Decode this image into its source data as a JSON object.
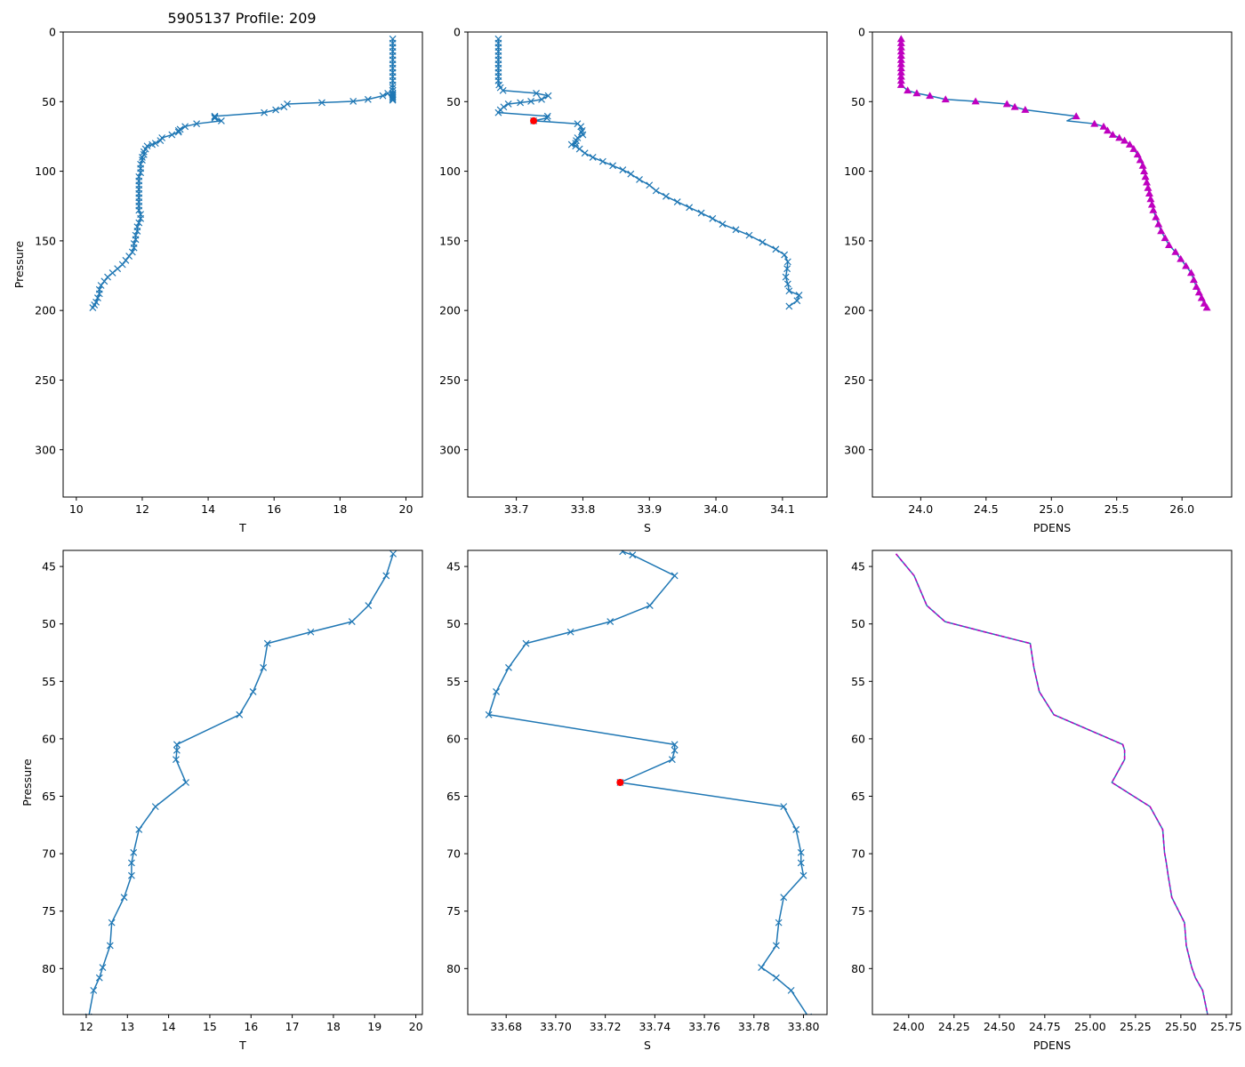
{
  "figure_title": "5905137 Profile: 209",
  "chart_data": [
    {
      "type": "line",
      "panel": "top-left",
      "title": "5905137 Profile: 209",
      "xlabel": "T",
      "ylabel": "Pressure",
      "xlim": [
        9.6,
        20.5
      ],
      "ylim": [
        334,
        0
      ],
      "xticks": [
        10,
        12,
        14,
        16,
        18,
        20
      ],
      "yticks": [
        0,
        50,
        100,
        150,
        200,
        250,
        300
      ],
      "series": [
        {
          "name": "T",
          "color": "#1f77b4",
          "marker": "x",
          "x": [
            19.6,
            19.6,
            19.6,
            19.6,
            19.6,
            19.6,
            19.6,
            19.6,
            19.6,
            19.6,
            19.6,
            19.6,
            19.6,
            19.6,
            19.6,
            19.6,
            19.6,
            19.6,
            19.6,
            19.6,
            19.45,
            19.3,
            18.85,
            18.4,
            17.45,
            16.4,
            16.3,
            16.05,
            15.7,
            14.2,
            14.2,
            14.2,
            14.4,
            13.65,
            13.3,
            13.15,
            13.1,
            13.1,
            12.9,
            12.6,
            12.55,
            12.4,
            12.3,
            12.15,
            12.1,
            12.05,
            12.05,
            12.0,
            12.0,
            11.95,
            11.95,
            11.95,
            11.9,
            11.9,
            11.9,
            11.9,
            11.9,
            11.9,
            11.9,
            11.9,
            11.9,
            11.95,
            11.95,
            11.9,
            11.85,
            11.85,
            11.8,
            11.8,
            11.75,
            11.75,
            11.7,
            11.6,
            11.5,
            11.4,
            11.25,
            11.1,
            10.95,
            10.85,
            10.75,
            10.7,
            10.7,
            10.65,
            10.6,
            10.55,
            10.5
          ],
          "y": [
            5,
            8,
            11,
            14,
            17,
            20,
            23,
            26,
            29,
            32,
            35,
            38,
            40,
            42,
            44,
            45,
            46,
            47,
            48,
            49,
            44,
            45.8,
            48.4,
            49.8,
            50.7,
            51.7,
            53.8,
            55.9,
            57.9,
            60.5,
            61.0,
            61.8,
            63.8,
            65.9,
            67.9,
            69.9,
            70.8,
            71.9,
            73.8,
            76.0,
            78.0,
            79.9,
            80.8,
            81.9,
            84,
            86,
            88,
            90,
            92,
            95,
            98,
            101,
            104,
            107,
            110,
            113,
            116,
            119,
            122,
            125,
            128,
            131,
            134,
            137,
            140,
            143,
            146,
            149,
            152,
            155,
            158,
            161,
            164,
            167,
            170,
            173,
            176,
            179,
            182,
            185,
            188,
            191,
            194,
            196,
            198
          ]
        }
      ]
    },
    {
      "type": "line",
      "panel": "top-middle",
      "xlabel": "S",
      "xlim": [
        33.627,
        34.167
      ],
      "ylim": [
        334,
        0
      ],
      "xticks": [
        33.7,
        33.8,
        33.9,
        34.0,
        34.1
      ],
      "yticks": [
        0,
        50,
        100,
        150,
        200,
        250,
        300
      ],
      "series": [
        {
          "name": "S",
          "color": "#1f77b4",
          "marker": "x",
          "x": [
            33.673,
            33.673,
            33.673,
            33.673,
            33.673,
            33.673,
            33.673,
            33.673,
            33.673,
            33.673,
            33.673,
            33.674,
            33.676,
            33.68,
            33.73,
            33.748,
            33.738,
            33.722,
            33.706,
            33.688,
            33.681,
            33.676,
            33.673,
            33.747,
            33.746,
            33.726,
            33.792,
            33.797,
            33.799,
            33.798,
            33.8,
            33.792,
            33.79,
            33.789,
            33.783,
            33.789,
            33.795,
            33.803,
            33.815,
            33.83,
            33.845,
            33.86,
            33.872,
            33.885,
            33.9,
            33.91,
            33.925,
            33.942,
            33.96,
            33.978,
            33.995,
            34.01,
            34.03,
            34.05,
            34.07,
            34.09,
            34.103,
            34.108,
            34.107,
            34.105,
            34.108,
            34.11,
            34.125,
            34.122,
            34.11
          ],
          "y": [
            5,
            8,
            11,
            14,
            17,
            20,
            23,
            26,
            29,
            32,
            35,
            38,
            40,
            42,
            44,
            45.8,
            48.4,
            49.8,
            50.7,
            51.7,
            53.8,
            55.9,
            57.9,
            60.5,
            61.8,
            63.8,
            65.9,
            67.9,
            70.8,
            71.9,
            73.8,
            76.0,
            78.0,
            79.9,
            80.8,
            81.9,
            84,
            87,
            90,
            93,
            96,
            99,
            102,
            106,
            110,
            114,
            118,
            122,
            126,
            130,
            134,
            138,
            142,
            146,
            151,
            156,
            160,
            165,
            170,
            176,
            181,
            186,
            189,
            193,
            197
          ]
        },
        {
          "name": "marker",
          "color": "#ff0000",
          "marker": "o",
          "x": [
            33.726
          ],
          "y": [
            63.8
          ]
        }
      ]
    },
    {
      "type": "line",
      "panel": "top-right",
      "xlabel": "PDENS",
      "xlim": [
        23.63,
        26.38
      ],
      "ylim": [
        334,
        0
      ],
      "xticks": [
        24.0,
        24.5,
        25.0,
        25.5,
        26.0
      ],
      "yticks": [
        0,
        50,
        100,
        150,
        200,
        250,
        300
      ],
      "series": [
        {
          "name": "PDENS",
          "color": "#1f77b4",
          "marker": "",
          "x": [
            23.85,
            23.85,
            23.85,
            23.85,
            23.85,
            23.85,
            23.85,
            23.85,
            23.85,
            23.85,
            23.85,
            23.85,
            23.9,
            23.97,
            24.07,
            24.19,
            24.42,
            24.66,
            24.72,
            24.8,
            25.19,
            25.12,
            25.33,
            25.4,
            25.43,
            25.47,
            25.52,
            25.56,
            25.6,
            25.63,
            25.66,
            25.68,
            25.7,
            25.71,
            25.72,
            25.73,
            25.74,
            25.75,
            25.76,
            25.77,
            25.78,
            25.8,
            25.82,
            25.84,
            25.87,
            25.9,
            25.95,
            25.99,
            26.03,
            26.07,
            26.09,
            26.11,
            26.13,
            26.15,
            26.17,
            26.19
          ],
          "y": [
            5,
            8,
            11,
            14,
            17,
            20,
            23,
            26,
            29,
            32,
            35,
            38,
            42,
            44,
            45.8,
            48.4,
            49.8,
            51.7,
            53.8,
            55.9,
            60.5,
            63.8,
            65.9,
            67.9,
            70.8,
            73.8,
            76,
            78,
            80.8,
            84,
            88,
            92,
            96,
            100,
            104,
            108,
            112,
            116,
            120,
            124,
            128,
            133,
            138,
            143,
            148,
            153,
            158,
            163,
            168,
            173,
            178,
            183,
            187,
            191,
            195,
            198
          ]
        },
        {
          "name": "PDENS markers",
          "color": "#bf00bf",
          "marker": "^",
          "x": [
            23.85,
            23.85,
            23.85,
            23.85,
            23.85,
            23.85,
            23.85,
            23.85,
            23.85,
            23.85,
            23.85,
            23.85,
            23.9,
            23.97,
            24.07,
            24.19,
            24.42,
            24.66,
            24.72,
            24.8,
            25.19,
            25.33,
            25.4,
            25.43,
            25.47,
            25.52,
            25.56,
            25.6,
            25.63,
            25.66,
            25.68,
            25.7,
            25.71,
            25.72,
            25.73,
            25.74,
            25.75,
            25.76,
            25.77,
            25.78,
            25.8,
            25.82,
            25.84,
            25.87,
            25.9,
            25.95,
            25.99,
            26.03,
            26.07,
            26.09,
            26.11,
            26.13,
            26.15,
            26.17,
            26.19
          ],
          "y": [
            5,
            8,
            11,
            14,
            17,
            20,
            23,
            26,
            29,
            32,
            35,
            38,
            42,
            44,
            45.8,
            48.4,
            49.8,
            51.7,
            53.8,
            55.9,
            60.5,
            65.9,
            67.9,
            70.8,
            73.8,
            76,
            78,
            80.8,
            84,
            88,
            92,
            96,
            100,
            104,
            108,
            112,
            116,
            120,
            124,
            128,
            133,
            138,
            143,
            148,
            153,
            158,
            163,
            168,
            173,
            178,
            183,
            187,
            191,
            195,
            198
          ]
        }
      ]
    },
    {
      "type": "line",
      "panel": "bottom-left",
      "xlabel": "T",
      "ylabel": "Pressure",
      "xlim": [
        11.44,
        20.16
      ],
      "ylim": [
        84,
        43.6
      ],
      "xticks": [
        12,
        13,
        14,
        15,
        16,
        17,
        18,
        19,
        20
      ],
      "yticks": [
        45,
        50,
        55,
        60,
        65,
        70,
        75,
        80
      ],
      "series": [
        {
          "name": "T",
          "color": "#1f77b4",
          "marker": "x",
          "x": [
            19.45,
            19.28,
            18.85,
            18.45,
            17.45,
            16.4,
            16.3,
            16.05,
            15.72,
            14.2,
            14.2,
            14.18,
            14.42,
            13.68,
            13.28,
            13.15,
            13.1,
            13.1,
            12.92,
            12.62,
            12.58,
            12.4,
            12.32,
            12.18,
            12.06
          ],
          "y": [
            43.9,
            45.8,
            48.4,
            49.8,
            50.7,
            51.7,
            53.8,
            55.9,
            57.9,
            60.5,
            61.0,
            61.8,
            63.8,
            65.9,
            67.9,
            69.9,
            70.8,
            71.9,
            73.8,
            76.0,
            78.0,
            79.9,
            80.8,
            81.9,
            84.2
          ]
        }
      ]
    },
    {
      "type": "line",
      "panel": "bottom-middle",
      "xlabel": "S",
      "xlim": [
        33.6645,
        33.8095
      ],
      "ylim": [
        84,
        43.6
      ],
      "xticks": [
        33.68,
        33.7,
        33.72,
        33.74,
        33.76,
        33.78,
        33.8
      ],
      "tick_labels": [
        "33.68",
        "33.70",
        "33.72",
        "33.74",
        "33.76",
        "33.78",
        "33.80"
      ],
      "yticks": [
        45,
        50,
        55,
        60,
        65,
        70,
        75,
        80
      ],
      "series": [
        {
          "name": "S",
          "color": "#1f77b4",
          "marker": "x",
          "x": [
            33.727,
            33.731,
            33.748,
            33.738,
            33.722,
            33.706,
            33.688,
            33.681,
            33.676,
            33.673,
            33.748,
            33.748,
            33.747,
            33.726,
            33.792,
            33.797,
            33.799,
            33.799,
            33.8,
            33.792,
            33.79,
            33.789,
            33.783,
            33.789,
            33.795,
            33.802
          ],
          "y": [
            43.7,
            44.0,
            45.8,
            48.4,
            49.8,
            50.7,
            51.7,
            53.8,
            55.9,
            57.9,
            60.5,
            61.0,
            61.8,
            63.8,
            65.9,
            67.9,
            69.9,
            70.8,
            71.9,
            73.8,
            76.0,
            78.0,
            79.9,
            80.8,
            81.9,
            84.2
          ]
        },
        {
          "name": "marker",
          "color": "#ff0000",
          "marker": "o",
          "x": [
            33.726
          ],
          "y": [
            63.8
          ]
        }
      ]
    },
    {
      "type": "line",
      "panel": "bottom-right",
      "xlabel": "PDENS",
      "xlim": [
        23.8,
        25.78
      ],
      "ylim": [
        84,
        43.6
      ],
      "xticks": [
        24.0,
        24.25,
        24.5,
        24.75,
        25.0,
        25.25,
        25.5,
        25.75
      ],
      "tick_labels": [
        "24.00",
        "24.25",
        "24.50",
        "24.75",
        "25.00",
        "25.25",
        "25.50",
        "25.75"
      ],
      "yticks": [
        45,
        50,
        55,
        60,
        65,
        70,
        75,
        80
      ],
      "series": [
        {
          "name": "PDENS",
          "color": "#1f77b4",
          "marker": "",
          "x": [
            23.93,
            24.03,
            24.1,
            24.2,
            24.42,
            24.67,
            24.69,
            24.72,
            24.8,
            25.18,
            25.19,
            25.19,
            25.12,
            25.33,
            25.4,
            25.41,
            25.42,
            25.43,
            25.45,
            25.52,
            25.53,
            25.56,
            25.58,
            25.62,
            25.65
          ],
          "y": [
            43.9,
            45.8,
            48.4,
            49.8,
            50.7,
            51.7,
            53.8,
            55.9,
            57.9,
            60.5,
            61.0,
            61.8,
            63.8,
            65.9,
            67.9,
            69.9,
            70.8,
            71.9,
            73.8,
            76.0,
            78.0,
            79.9,
            80.8,
            81.9,
            84.2
          ]
        },
        {
          "name": "PDENS overlay",
          "color": "#bf00bf",
          "dashed": true,
          "marker": "",
          "x": [
            23.93,
            24.03,
            24.1,
            24.2,
            24.42,
            24.67,
            24.69,
            24.72,
            24.8,
            25.18,
            25.19,
            25.19,
            25.12,
            25.33,
            25.4,
            25.41,
            25.42,
            25.43,
            25.45,
            25.52,
            25.53,
            25.56,
            25.58,
            25.62,
            25.65
          ],
          "y": [
            43.9,
            45.8,
            48.4,
            49.8,
            50.7,
            51.7,
            53.8,
            55.9,
            57.9,
            60.5,
            61.0,
            61.8,
            63.8,
            65.9,
            67.9,
            69.9,
            70.8,
            71.9,
            73.8,
            76.0,
            78.0,
            79.9,
            80.8,
            81.9,
            84.2
          ]
        }
      ]
    }
  ]
}
